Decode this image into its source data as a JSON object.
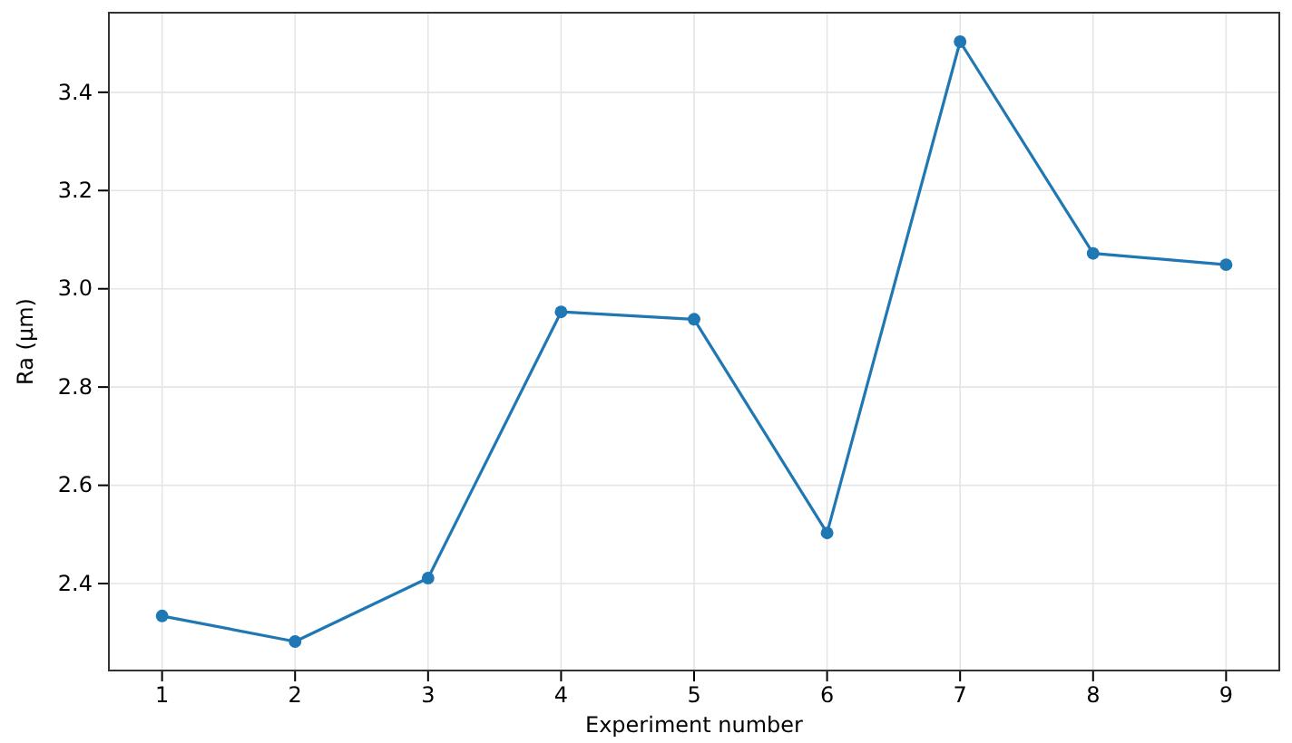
{
  "chart_data": {
    "type": "line",
    "xlabel": "Experiment number",
    "ylabel": "Ra (µm)",
    "x": [
      1,
      2,
      3,
      4,
      5,
      6,
      7,
      8,
      9
    ],
    "series": [
      {
        "color": "#1f77b4",
        "values": [
          2.334,
          2.282,
          2.411,
          2.953,
          2.938,
          2.503,
          3.503,
          3.072,
          3.049
        ]
      }
    ],
    "xlim": [
      0.6,
      9.4
    ],
    "xticks": [
      1,
      2,
      3,
      4,
      5,
      6,
      7,
      8,
      9
    ],
    "ylim": [
      2.223,
      3.562
    ],
    "yticks": [
      {
        "value": 2.4,
        "label": "2.4"
      },
      {
        "value": 2.6,
        "label": "2.6"
      },
      {
        "value": 2.8,
        "label": "2.8"
      },
      {
        "value": 3.0,
        "label": "3.0"
      },
      {
        "value": 3.2,
        "label": "3.2"
      },
      {
        "value": 3.4,
        "label": "3.4"
      }
    ],
    "grid": true,
    "marker": "circle",
    "line_style": "solid"
  }
}
